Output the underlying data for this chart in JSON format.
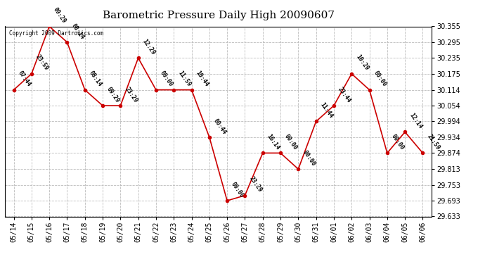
{
  "title": "Barometric Pressure Daily High 20090607",
  "copyright": "Copyright 2009 Dartronics.com",
  "dates": [
    "05/14",
    "05/15",
    "05/16",
    "05/17",
    "05/18",
    "05/19",
    "05/20",
    "05/21",
    "05/22",
    "05/23",
    "05/24",
    "05/25",
    "05/26",
    "05/27",
    "05/28",
    "05/29",
    "05/30",
    "05/31",
    "06/01",
    "06/02",
    "06/03",
    "06/04",
    "06/05",
    "06/06"
  ],
  "values": [
    30.114,
    30.175,
    30.355,
    30.295,
    30.114,
    30.054,
    30.054,
    30.235,
    30.114,
    30.114,
    30.114,
    29.934,
    29.693,
    29.713,
    29.874,
    29.874,
    29.813,
    29.994,
    30.054,
    30.175,
    30.114,
    29.874,
    29.954,
    29.874
  ],
  "labels": [
    "07:44",
    "23:59",
    "09:29",
    "08:14",
    "08:14",
    "09:29",
    "23:29",
    "12:29",
    "00:00",
    "11:59",
    "10:44",
    "00:44",
    "00:00",
    "23:29",
    "16:14",
    "00:00",
    "00:00",
    "11:44",
    "23:44",
    "10:29",
    "00:00",
    "00:00",
    "12:14",
    "21:59"
  ],
  "line_color": "#cc0000",
  "marker_color": "#cc0000",
  "bg_color": "#ffffff",
  "grid_color": "#bbbbbb",
  "ylim_min": 29.633,
  "ylim_max": 30.355,
  "yticks": [
    29.633,
    29.693,
    29.753,
    29.813,
    29.874,
    29.934,
    29.994,
    30.054,
    30.114,
    30.175,
    30.235,
    30.295,
    30.355
  ],
  "title_fontsize": 11,
  "label_fontsize": 6,
  "tick_fontsize": 7,
  "copyright_fontsize": 5.5
}
